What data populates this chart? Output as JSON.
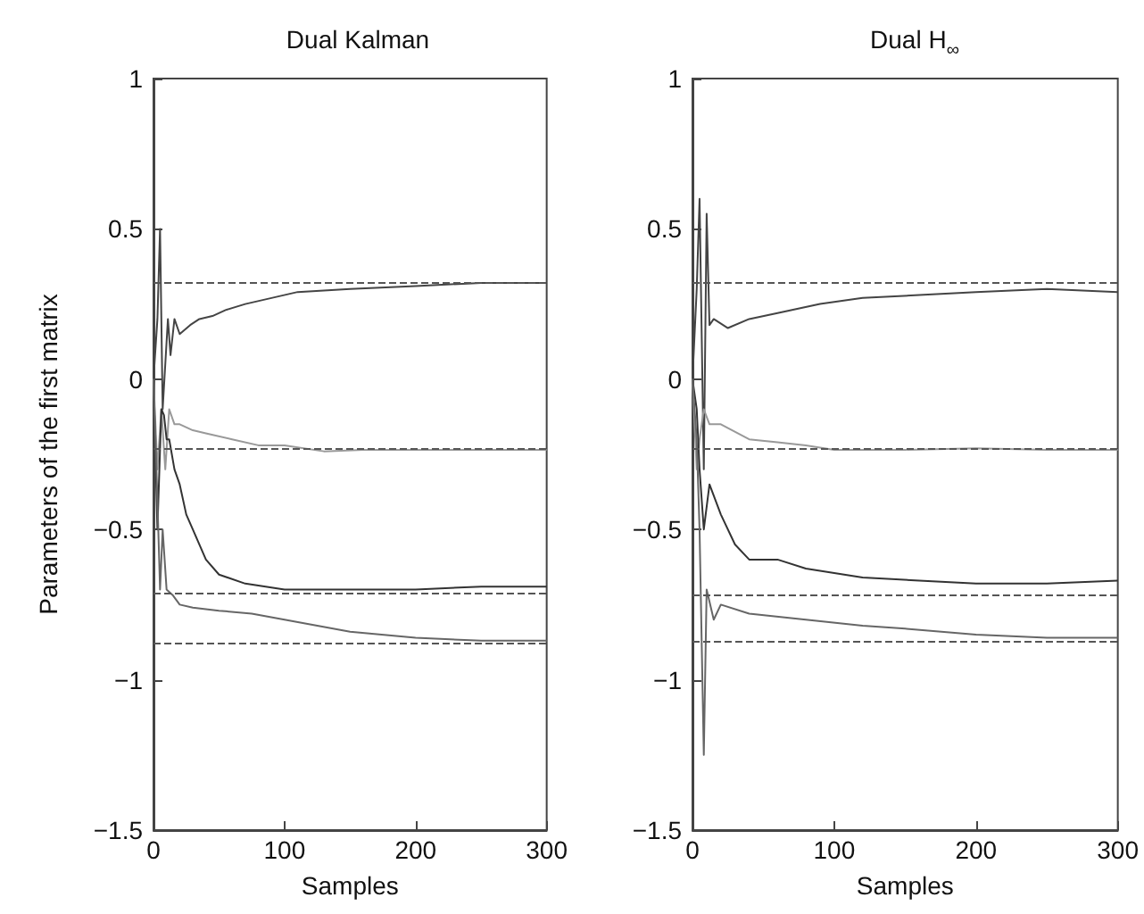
{
  "chart_data": [
    {
      "type": "line",
      "title": "Dual Kalman",
      "xlabel": "Samples",
      "ylabel": "Parameters of the first matrix",
      "xlim": [
        0,
        300
      ],
      "xticks": [
        0,
        100,
        200,
        300
      ],
      "ylim": [
        -1.5,
        1
      ],
      "yticks": [
        -1.5,
        -1,
        -0.5,
        0,
        0.5,
        1
      ],
      "series": [
        {
          "color": "#444444",
          "x": [
            0,
            3,
            5,
            7,
            9,
            11,
            13,
            16,
            20,
            28,
            35,
            45,
            55,
            70,
            90,
            110,
            150,
            200,
            250,
            300
          ],
          "values": [
            0,
            0.2,
            0.5,
            -0.1,
            0.05,
            0.2,
            0.08,
            0.2,
            0.15,
            0.18,
            0.2,
            0.21,
            0.23,
            0.25,
            0.27,
            0.29,
            0.3,
            0.31,
            0.32,
            0.32
          ]
        },
        {
          "color": "#999999",
          "x": [
            0,
            3,
            6,
            9,
            12,
            16,
            20,
            30,
            40,
            60,
            80,
            100,
            130,
            160,
            200,
            250,
            300
          ],
          "values": [
            0,
            -0.3,
            -0.1,
            -0.3,
            -0.1,
            -0.15,
            -0.15,
            -0.17,
            -0.18,
            -0.2,
            -0.22,
            -0.22,
            -0.24,
            -0.235,
            -0.235,
            -0.235,
            -0.235
          ]
        },
        {
          "color": "#333333",
          "x": [
            0,
            3,
            6,
            8,
            10,
            12,
            16,
            20,
            25,
            30,
            40,
            50,
            70,
            100,
            150,
            200,
            250,
            300
          ],
          "values": [
            0,
            -0.5,
            -0.1,
            -0.12,
            -0.2,
            -0.2,
            -0.3,
            -0.35,
            -0.45,
            -0.5,
            -0.6,
            -0.65,
            -0.68,
            -0.7,
            -0.7,
            -0.7,
            -0.69,
            -0.69
          ]
        },
        {
          "color": "#666666",
          "x": [
            0,
            3,
            5,
            7,
            10,
            15,
            20,
            30,
            50,
            75,
            100,
            125,
            150,
            200,
            250,
            300
          ],
          "values": [
            0,
            -0.4,
            -0.7,
            -0.5,
            -0.7,
            -0.72,
            -0.75,
            -0.76,
            -0.77,
            -0.78,
            -0.8,
            -0.82,
            -0.84,
            -0.86,
            -0.87,
            -0.87
          ]
        }
      ],
      "ref_lines": [
        {
          "axis": "y",
          "value": 0.32,
          "line_style": "dashed",
          "color": "#555555"
        },
        {
          "axis": "y",
          "value": -0.235,
          "line_style": "dashed",
          "color": "#555555"
        },
        {
          "axis": "y",
          "value": -0.71,
          "line_style": "dashed",
          "color": "#555555"
        },
        {
          "axis": "y",
          "value": -0.875,
          "line_style": "dashed",
          "color": "#555555"
        }
      ]
    },
    {
      "type": "line",
      "title": "Dual H$_{∞}$",
      "xlabel": "Samples",
      "xlim": [
        0,
        300
      ],
      "xticks": [
        0,
        100,
        200,
        300
      ],
      "ylim": [
        -1.5,
        1
      ],
      "yticks": [
        -1.5,
        -1,
        -0.5,
        0,
        0.5,
        1
      ],
      "series": [
        {
          "color": "#444444",
          "x": [
            0,
            3,
            5,
            8,
            10,
            12,
            15,
            25,
            40,
            60,
            90,
            120,
            160,
            200,
            250,
            300
          ],
          "values": [
            0,
            0.3,
            0.6,
            -0.3,
            0.55,
            0.18,
            0.2,
            0.17,
            0.2,
            0.22,
            0.25,
            0.27,
            0.28,
            0.29,
            0.3,
            0.29
          ]
        },
        {
          "color": "#999999",
          "x": [
            0,
            3,
            5,
            8,
            12,
            20,
            40,
            60,
            80,
            100,
            150,
            200,
            250,
            300
          ],
          "values": [
            0,
            -0.3,
            -0.2,
            -0.1,
            -0.15,
            -0.15,
            -0.2,
            -0.21,
            -0.22,
            -0.235,
            -0.235,
            -0.23,
            -0.235,
            -0.235
          ]
        },
        {
          "color": "#333333",
          "x": [
            0,
            3,
            5,
            8,
            12,
            20,
            30,
            40,
            60,
            80,
            120,
            160,
            200,
            250,
            300
          ],
          "values": [
            0,
            -0.1,
            -0.3,
            -0.5,
            -0.35,
            -0.45,
            -0.55,
            -0.6,
            -0.6,
            -0.63,
            -0.66,
            -0.67,
            -0.68,
            -0.68,
            -0.67
          ]
        },
        {
          "color": "#666666",
          "x": [
            0,
            3,
            5,
            8,
            10,
            15,
            20,
            40,
            80,
            120,
            150,
            200,
            250,
            300
          ],
          "values": [
            0,
            -0.2,
            -0.5,
            -1.25,
            -0.7,
            -0.8,
            -0.75,
            -0.78,
            -0.8,
            -0.82,
            -0.83,
            -0.85,
            -0.86,
            -0.86
          ]
        }
      ],
      "ref_lines": [
        {
          "axis": "y",
          "value": 0.32,
          "line_style": "dashed",
          "color": "#555555"
        },
        {
          "axis": "y",
          "value": -0.235,
          "line_style": "dashed",
          "color": "#555555"
        },
        {
          "axis": "y",
          "value": -0.72,
          "line_style": "dashed",
          "color": "#555555"
        },
        {
          "axis": "y",
          "value": -0.87,
          "line_style": "dashed",
          "color": "#555555"
        }
      ]
    }
  ]
}
